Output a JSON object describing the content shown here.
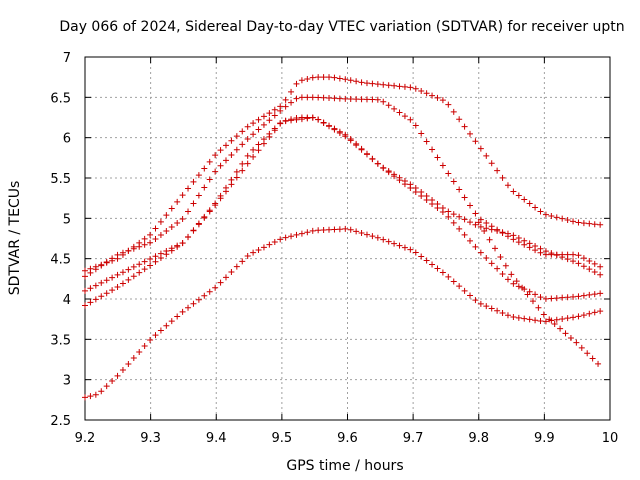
{
  "chart_data": {
    "type": "scatter",
    "title": "Day 066 of 2024, Sidereal Day-to-day VTEC variation (SDTVAR) for receiver uptn",
    "xlabel": "GPS time / hours",
    "ylabel": "SDTVAR / TECUs",
    "xlim": [
      9.2,
      10.0
    ],
    "ylim": [
      2.5,
      7.0
    ],
    "xticks": [
      "9.2",
      "9.3",
      "9.4",
      "9.5",
      "9.6",
      "9.7",
      "9.8",
      "9.9",
      "10"
    ],
    "yticks": [
      "2.5",
      "3",
      "3.5",
      "4",
      "4.5",
      "5",
      "5.5",
      "6",
      "6.5",
      "7"
    ],
    "grid": true,
    "marker": "+",
    "color": "#cc0000",
    "x_start": 9.2,
    "x_end": 9.985,
    "series": [
      {
        "name": "series-1",
        "x": [
          9.2,
          9.25,
          9.3,
          9.35,
          9.4,
          9.45,
          9.5,
          9.525,
          9.55,
          9.575,
          9.6,
          9.625,
          9.65,
          9.7,
          9.75,
          9.8,
          9.85,
          9.9,
          9.95,
          9.985
        ],
        "y": [
          4.35,
          4.5,
          4.8,
          5.3,
          5.8,
          6.15,
          6.4,
          6.7,
          6.75,
          6.75,
          6.72,
          6.68,
          6.66,
          6.62,
          6.45,
          5.9,
          5.35,
          5.05,
          4.95,
          4.92
        ]
      },
      {
        "name": "series-2",
        "x": [
          9.2,
          9.25,
          9.3,
          9.35,
          9.4,
          9.45,
          9.5,
          9.525,
          9.55,
          9.6,
          9.65,
          9.7,
          9.75,
          9.8,
          9.85,
          9.9,
          9.95,
          9.985
        ],
        "y": [
          4.28,
          4.55,
          4.7,
          5.0,
          5.6,
          6.0,
          6.35,
          6.5,
          6.5,
          6.48,
          6.47,
          6.2,
          5.6,
          5.0,
          4.75,
          4.55,
          4.55,
          4.4
        ]
      },
      {
        "name": "series-3",
        "x": [
          9.2,
          9.25,
          9.3,
          9.35,
          9.4,
          9.45,
          9.5,
          9.525,
          9.55,
          9.6,
          9.65,
          9.7,
          9.75,
          9.8,
          9.85,
          9.9,
          9.95,
          9.985
        ],
        "y": [
          4.1,
          4.3,
          4.5,
          4.7,
          5.2,
          5.8,
          6.2,
          6.25,
          6.25,
          6.02,
          5.65,
          5.4,
          5.1,
          4.9,
          4.8,
          4.6,
          4.45,
          4.3
        ]
      },
      {
        "name": "series-4",
        "x": [
          9.2,
          9.25,
          9.3,
          9.35,
          9.4,
          9.45,
          9.5,
          9.55,
          9.6,
          9.65,
          9.7,
          9.75,
          9.8,
          9.85,
          9.9,
          9.95,
          9.985
        ],
        "y": [
          3.92,
          4.15,
          4.42,
          4.7,
          5.18,
          5.7,
          6.2,
          6.25,
          6.0,
          5.65,
          5.35,
          5.05,
          4.6,
          4.2,
          4.0,
          4.03,
          4.07
        ]
      },
      {
        "name": "series-5",
        "x": [
          9.2,
          9.22,
          9.25,
          9.3,
          9.35,
          9.4,
          9.45,
          9.5,
          9.55,
          9.6,
          9.65,
          9.7,
          9.75,
          9.8,
          9.85,
          9.9,
          9.95,
          9.985
        ],
        "y": [
          2.78,
          2.82,
          3.05,
          3.5,
          3.85,
          4.15,
          4.55,
          4.75,
          4.85,
          4.87,
          4.75,
          4.6,
          4.3,
          3.95,
          3.78,
          3.72,
          3.78,
          3.85
        ]
      },
      {
        "name": "series-6",
        "x": [
          9.8,
          9.85,
          9.9,
          9.95,
          9.985
        ],
        "y": [
          4.95,
          4.3,
          3.8,
          3.45,
          3.17
        ]
      }
    ]
  }
}
